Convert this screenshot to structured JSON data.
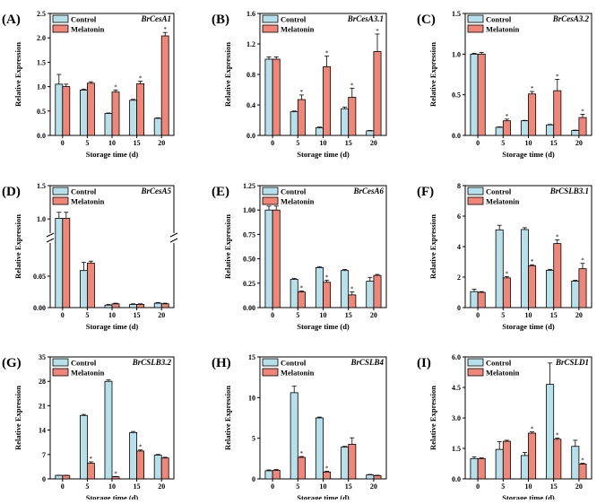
{
  "colors": {
    "control": "#b7e1ea",
    "melatonin": "#f08678",
    "stroke": "#000000"
  },
  "legend": {
    "control": "Control",
    "melatonin": "Melatonin"
  },
  "chart_data": [
    {
      "type": "bar",
      "label": "(A)",
      "gene": "BrCesA1",
      "xlabel": "Storage time (d)",
      "ylabel": "Relative Expression",
      "categories": [
        "0",
        "5",
        "10",
        "15",
        "20"
      ],
      "ylim": [
        0,
        2.5
      ],
      "yticks": [
        "0.0",
        "0.5",
        "1.0",
        "1.5",
        "2.0",
        "2.5"
      ],
      "series": [
        {
          "name": "Control",
          "values": [
            1.05,
            0.93,
            0.45,
            0.72,
            0.35
          ],
          "errors": [
            0.2,
            0.02,
            0.01,
            0.02,
            0.01
          ]
        },
        {
          "name": "Melatonin",
          "values": [
            1.0,
            1.07,
            0.89,
            1.06,
            2.04
          ],
          "errors": [
            0.05,
            0.03,
            0.04,
            0.05,
            0.07
          ]
        }
      ],
      "significant": [
        false,
        false,
        true,
        true,
        true
      ]
    },
    {
      "type": "bar",
      "label": "(B)",
      "gene": "BrCesA3.1",
      "xlabel": "Storage time (d)",
      "ylabel": "Relative Expression",
      "categories": [
        "0",
        "5",
        "10",
        "15",
        "20"
      ],
      "ylim": [
        0,
        1.6
      ],
      "yticks": [
        "0.0",
        "0.4",
        "0.8",
        "1.2",
        "1.6"
      ],
      "series": [
        {
          "name": "Control",
          "values": [
            1.0,
            0.31,
            0.1,
            0.35,
            0.06
          ],
          "errors": [
            0.03,
            0.01,
            0.01,
            0.02,
            0.005
          ]
        },
        {
          "name": "Melatonin",
          "values": [
            1.0,
            0.47,
            0.9,
            0.5,
            1.1
          ],
          "errors": [
            0.03,
            0.06,
            0.14,
            0.12,
            0.23
          ]
        }
      ],
      "significant": [
        false,
        true,
        true,
        true,
        true
      ]
    },
    {
      "type": "bar",
      "label": "(C)",
      "gene": "BrCesA3.2",
      "xlabel": "Storage time (d)",
      "ylabel": "Relative Expression",
      "categories": [
        "0",
        "5",
        "10",
        "15",
        "20"
      ],
      "ylim": [
        0,
        1.5
      ],
      "yticks": [
        "0.0",
        "0.5",
        "1.0",
        "1.5"
      ],
      "series": [
        {
          "name": "Control",
          "values": [
            1.0,
            0.1,
            0.18,
            0.13,
            0.06
          ],
          "errors": [
            0.01,
            0.005,
            0.005,
            0.005,
            0.005
          ]
        },
        {
          "name": "Melatonin",
          "values": [
            1.0,
            0.18,
            0.51,
            0.55,
            0.22
          ],
          "errors": [
            0.02,
            0.02,
            0.03,
            0.14,
            0.04
          ]
        }
      ],
      "significant": [
        false,
        true,
        true,
        true,
        true
      ]
    },
    {
      "type": "bar",
      "label": "(D)",
      "gene": "BrCesA5",
      "xlabel": "Storage time (d)",
      "ylabel": "Relative Expression",
      "categories": [
        "0",
        "5",
        "10",
        "15",
        "20"
      ],
      "broken_axis": true,
      "lower_ylim": [
        0,
        0.1
      ],
      "upper_ylim": [
        0.8,
        1.5
      ],
      "lower_yticks": [
        "0.00",
        "0.05"
      ],
      "upper_yticks": [
        "1.0",
        "1.5"
      ],
      "series": [
        {
          "name": "Control",
          "values": [
            1.01,
            0.059,
            0.004,
            0.005,
            0.007
          ],
          "errors": [
            0.09,
            0.013,
            0.001,
            0.001,
            0.001
          ]
        },
        {
          "name": "Melatonin",
          "values": [
            1.01,
            0.071,
            0.006,
            0.005,
            0.006
          ],
          "errors": [
            0.09,
            0.003,
            0.001,
            0.001,
            0.001
          ]
        }
      ],
      "significant": [
        false,
        false,
        false,
        false,
        false
      ]
    },
    {
      "type": "bar",
      "label": "(E)",
      "gene": "BrCesA6",
      "xlabel": "Storage time (d)",
      "ylabel": "Relative Expression",
      "categories": [
        "0",
        "5",
        "10",
        "15",
        "20"
      ],
      "ylim": [
        0,
        1.25
      ],
      "yticks": [
        "0.00",
        "0.25",
        "0.50",
        "0.75",
        "1.00",
        "1.25"
      ],
      "series": [
        {
          "name": "Control",
          "values": [
            1.0,
            0.29,
            0.41,
            0.38,
            0.27
          ],
          "errors": [
            0.04,
            0.01,
            0.01,
            0.01,
            0.04
          ]
        },
        {
          "name": "Melatonin",
          "values": [
            1.0,
            0.16,
            0.26,
            0.13,
            0.33
          ],
          "errors": [
            0.04,
            0.01,
            0.02,
            0.03,
            0.01
          ]
        }
      ],
      "significant": [
        false,
        true,
        true,
        true,
        false
      ]
    },
    {
      "type": "bar",
      "label": "(F)",
      "gene": "BrCSLB3.1",
      "xlabel": "Storage time (d)",
      "ylabel": "Relative Expression",
      "categories": [
        "0",
        "5",
        "10",
        "15",
        "20"
      ],
      "ylim": [
        0,
        8
      ],
      "yticks": [
        "0",
        "2",
        "4",
        "6",
        "8"
      ],
      "series": [
        {
          "name": "Control",
          "values": [
            1.05,
            5.1,
            5.12,
            2.45,
            1.74
          ],
          "errors": [
            0.15,
            0.3,
            0.12,
            0.05,
            0.05
          ]
        },
        {
          "name": "Melatonin",
          "values": [
            1.0,
            1.95,
            2.75,
            4.2,
            2.55
          ],
          "errors": [
            0.05,
            0.08,
            0.06,
            0.25,
            0.35
          ]
        }
      ],
      "significant": [
        false,
        true,
        true,
        true,
        true
      ]
    },
    {
      "type": "bar",
      "label": "(G)",
      "gene": "BrCSLB3.2",
      "xlabel": "Storage time (d)",
      "ylabel": "Relative Expression",
      "categories": [
        "0",
        "5",
        "10",
        "15",
        "20"
      ],
      "ylim": [
        0,
        35
      ],
      "yticks": [
        "0",
        "7",
        "14",
        "21",
        "28",
        "35"
      ],
      "series": [
        {
          "name": "Control",
          "values": [
            1.0,
            18.2,
            28.0,
            13.3,
            6.8
          ],
          "errors": [
            0.05,
            0.3,
            0.4,
            0.3,
            0.2
          ]
        },
        {
          "name": "Melatonin",
          "values": [
            1.0,
            4.5,
            0.6,
            8.0,
            6.0
          ],
          "errors": [
            0.05,
            0.4,
            0.1,
            0.3,
            0.2
          ]
        }
      ],
      "significant": [
        false,
        true,
        true,
        true,
        false
      ]
    },
    {
      "type": "bar",
      "label": "(H)",
      "gene": "BrCSLB4",
      "xlabel": "Storage time (d)",
      "ylabel": "Relative Expression",
      "categories": [
        "0",
        "5",
        "10",
        "15",
        "20"
      ],
      "ylim": [
        0,
        15
      ],
      "yticks": [
        "0",
        "5",
        "10",
        "15"
      ],
      "series": [
        {
          "name": "Control",
          "values": [
            1.0,
            10.6,
            7.5,
            3.9,
            0.5
          ],
          "errors": [
            0.1,
            0.8,
            0.1,
            0.1,
            0.05
          ]
        },
        {
          "name": "Melatonin",
          "values": [
            1.05,
            2.65,
            0.85,
            4.25,
            0.4
          ],
          "errors": [
            0.1,
            0.1,
            0.1,
            0.8,
            0.05
          ]
        }
      ],
      "significant": [
        false,
        true,
        true,
        false,
        false
      ]
    },
    {
      "type": "bar",
      "label": "(I)",
      "gene": "BrCSLD1",
      "xlabel": "Storage time (d)",
      "ylabel": "Relative Expression",
      "categories": [
        "0",
        "5",
        "10",
        "15",
        "20"
      ],
      "ylim": [
        0,
        6
      ],
      "yticks": [
        "0.0",
        "1.5",
        "3.0",
        "4.5",
        "6.0"
      ],
      "series": [
        {
          "name": "Control",
          "values": [
            1.0,
            1.45,
            1.15,
            4.65,
            1.6
          ],
          "errors": [
            0.08,
            0.38,
            0.15,
            1.05,
            0.3
          ]
        },
        {
          "name": "Melatonin",
          "values": [
            1.0,
            1.85,
            2.25,
            1.95,
            0.73
          ],
          "errors": [
            0.03,
            0.05,
            0.06,
            0.06,
            0.04
          ]
        }
      ],
      "significant": [
        false,
        false,
        true,
        true,
        true
      ]
    }
  ]
}
